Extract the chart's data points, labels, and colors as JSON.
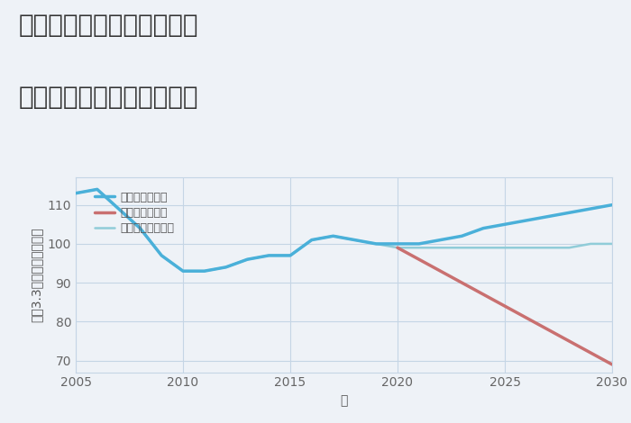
{
  "title_line1": "三重県桑名市長島町中川の",
  "title_line2": "中古マンションの価格推移",
  "xlabel": "年",
  "ylabel": "坪（3.3㎡）単価（万円）",
  "background_color": "#eef2f7",
  "plot_bg_color": "#eef2f7",
  "xlim": [
    2005,
    2030
  ],
  "ylim": [
    67,
    117
  ],
  "yticks": [
    70,
    80,
    90,
    100,
    110
  ],
  "xticks": [
    2005,
    2010,
    2015,
    2020,
    2025,
    2030
  ],
  "grid_color": "#c5d5e5",
  "scenarios": {
    "good": {
      "label": "グッドシナリオ",
      "color": "#4ab0d9",
      "linewidth": 2.5,
      "x": [
        2005,
        2006,
        2007,
        2008,
        2009,
        2010,
        2011,
        2012,
        2013,
        2014,
        2015,
        2016,
        2017,
        2018,
        2019,
        2020,
        2021,
        2022,
        2023,
        2024,
        2025,
        2026,
        2027,
        2028,
        2029,
        2030
      ],
      "y": [
        113,
        114,
        109,
        104,
        97,
        93,
        93,
        94,
        96,
        97,
        97,
        101,
        102,
        101,
        100,
        100,
        100,
        101,
        102,
        104,
        105,
        106,
        107,
        108,
        109,
        110
      ]
    },
    "bad": {
      "label": "バッドシナリオ",
      "color": "#c97070",
      "linewidth": 2.5,
      "x": [
        2020,
        2021,
        2022,
        2023,
        2024,
        2025,
        2026,
        2027,
        2028,
        2029,
        2030
      ],
      "y": [
        99,
        96,
        93,
        90,
        87,
        84,
        81,
        78,
        75,
        72,
        69
      ]
    },
    "normal": {
      "label": "ノーマルシナリオ",
      "color": "#90ccd8",
      "linewidth": 1.8,
      "x": [
        2005,
        2006,
        2007,
        2008,
        2009,
        2010,
        2011,
        2012,
        2013,
        2014,
        2015,
        2016,
        2017,
        2018,
        2019,
        2020,
        2021,
        2022,
        2023,
        2024,
        2025,
        2026,
        2027,
        2028,
        2029,
        2030
      ],
      "y": [
        113,
        114,
        109,
        104,
        97,
        93,
        93,
        94,
        96,
        97,
        97,
        101,
        102,
        101,
        100,
        99,
        99,
        99,
        99,
        99,
        99,
        99,
        99,
        99,
        100,
        100
      ]
    }
  },
  "legend_fontsize": 9,
  "title_fontsize": 20,
  "tick_fontsize": 10,
  "label_fontsize": 10
}
